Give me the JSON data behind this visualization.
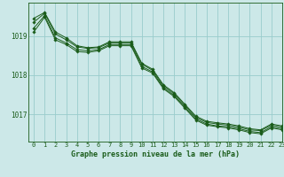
{
  "background_color": "#cce8e8",
  "grid_color": "#99cccc",
  "line_color": "#1a5c1a",
  "marker_color": "#1a5c1a",
  "xlabel": "Graphe pression niveau de la mer (hPa)",
  "xlabel_color": "#1a5c1a",
  "xlim": [
    -0.5,
    23
  ],
  "ylim": [
    1016.3,
    1019.85
  ],
  "yticks": [
    1017,
    1018,
    1019
  ],
  "xticks": [
    0,
    1,
    2,
    3,
    4,
    5,
    6,
    7,
    8,
    9,
    10,
    11,
    12,
    13,
    14,
    15,
    16,
    17,
    18,
    19,
    20,
    21,
    22,
    23
  ],
  "series": [
    [
      1019.45,
      1019.6,
      1019.1,
      1018.95,
      1018.75,
      1018.7,
      1018.72,
      1018.85,
      1018.85,
      1018.85,
      1018.3,
      1018.15,
      1017.75,
      1017.55,
      1017.25,
      1016.95,
      1016.82,
      1016.78,
      1016.75,
      1016.7,
      1016.63,
      1016.6,
      1016.75,
      1016.7
    ],
    [
      1019.35,
      1019.58,
      1019.05,
      1018.9,
      1018.72,
      1018.68,
      1018.7,
      1018.82,
      1018.82,
      1018.82,
      1018.28,
      1018.12,
      1017.72,
      1017.52,
      1017.22,
      1016.92,
      1016.79,
      1016.75,
      1016.72,
      1016.67,
      1016.6,
      1016.58,
      1016.72,
      1016.67
    ],
    [
      1019.2,
      1019.52,
      1018.95,
      1018.82,
      1018.65,
      1018.62,
      1018.65,
      1018.78,
      1018.78,
      1018.78,
      1018.22,
      1018.08,
      1017.68,
      1017.48,
      1017.18,
      1016.88,
      1016.75,
      1016.7,
      1016.68,
      1016.63,
      1016.56,
      1016.53,
      1016.68,
      1016.63
    ],
    [
      1019.1,
      1019.48,
      1018.9,
      1018.78,
      1018.6,
      1018.58,
      1018.62,
      1018.75,
      1018.75,
      1018.75,
      1018.18,
      1018.05,
      1017.65,
      1017.45,
      1017.15,
      1016.85,
      1016.72,
      1016.68,
      1016.65,
      1016.6,
      1016.53,
      1016.5,
      1016.65,
      1016.6
    ]
  ]
}
